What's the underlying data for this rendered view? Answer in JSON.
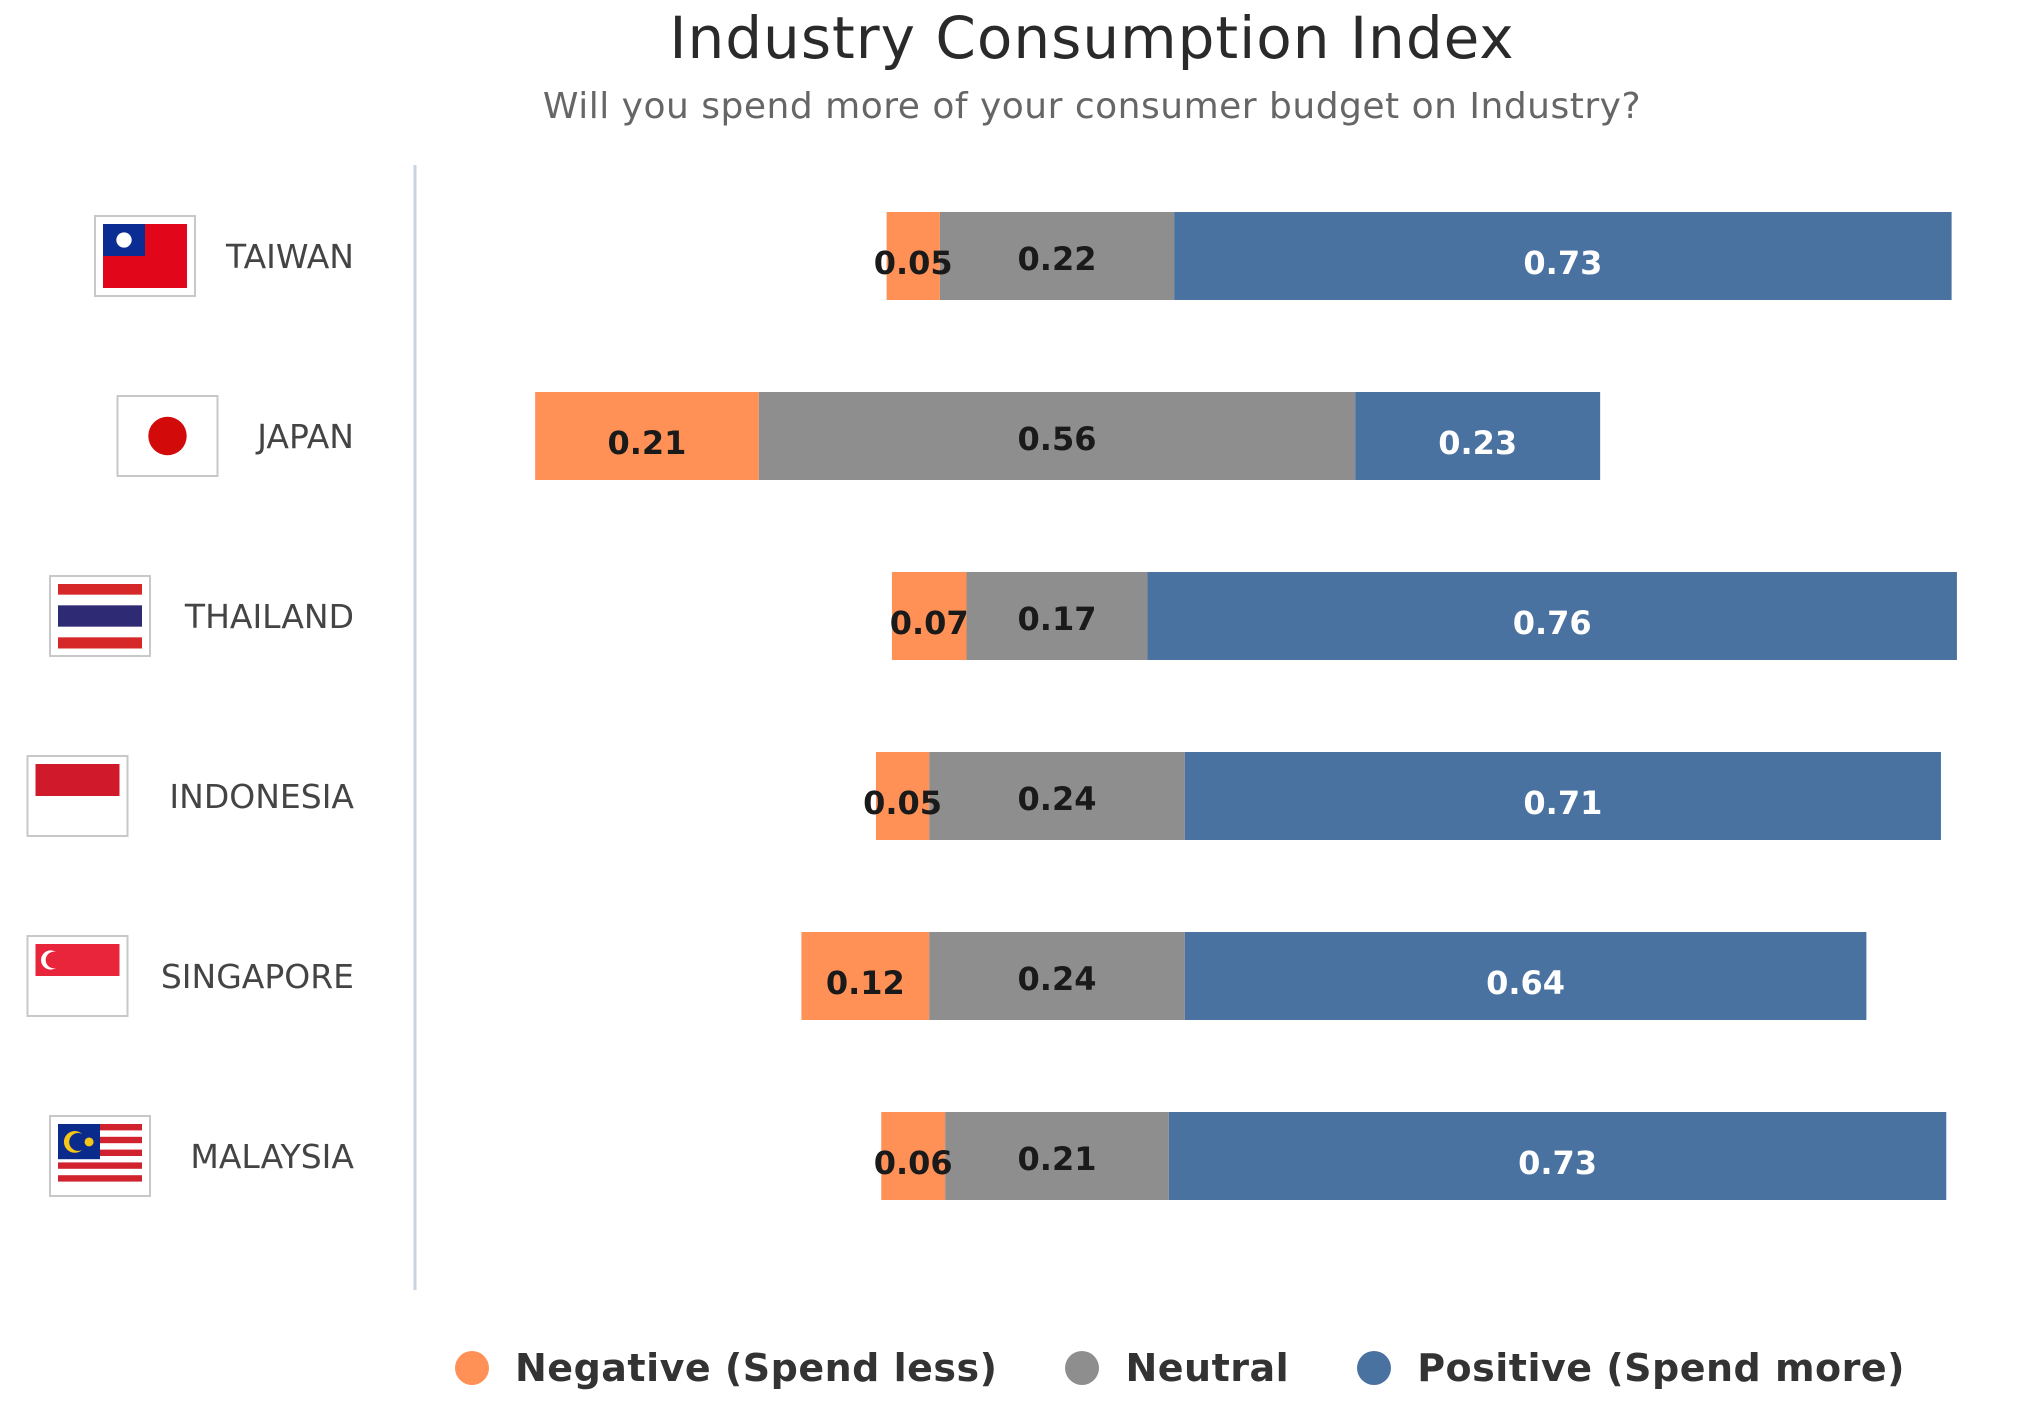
{
  "chart_data": {
    "type": "bar",
    "stacked": true,
    "orientation": "horizontal",
    "title": "Industry Consumption Index",
    "subtitle": "Will you spend more of your consumer budget on Industry?",
    "categories": [
      "TAIWAN",
      "JAPAN",
      "THAILAND",
      "INDONESIA",
      "SINGAPORE",
      "MALAYSIA"
    ],
    "series": [
      {
        "name": "Negative (Spend less)",
        "color": "#FF9157",
        "values": [
          0.05,
          0.21,
          0.07,
          0.05,
          0.12,
          0.06
        ]
      },
      {
        "name": "Neutral",
        "color": "#8E8E8E",
        "values": [
          0.22,
          0.56,
          0.17,
          0.24,
          0.24,
          0.21
        ]
      },
      {
        "name": "Positive (Spend more)",
        "color": "#4A72A0",
        "values": [
          0.73,
          0.23,
          0.76,
          0.71,
          0.64,
          0.73
        ]
      }
    ],
    "flags": [
      "taiwan-flag-icon",
      "japan-flag-icon",
      "thailand-flag-icon",
      "indonesia-flag-icon",
      "singapore-flag-icon",
      "malaysia-flag-icon"
    ],
    "legend_position": "bottom",
    "grid": false
  }
}
